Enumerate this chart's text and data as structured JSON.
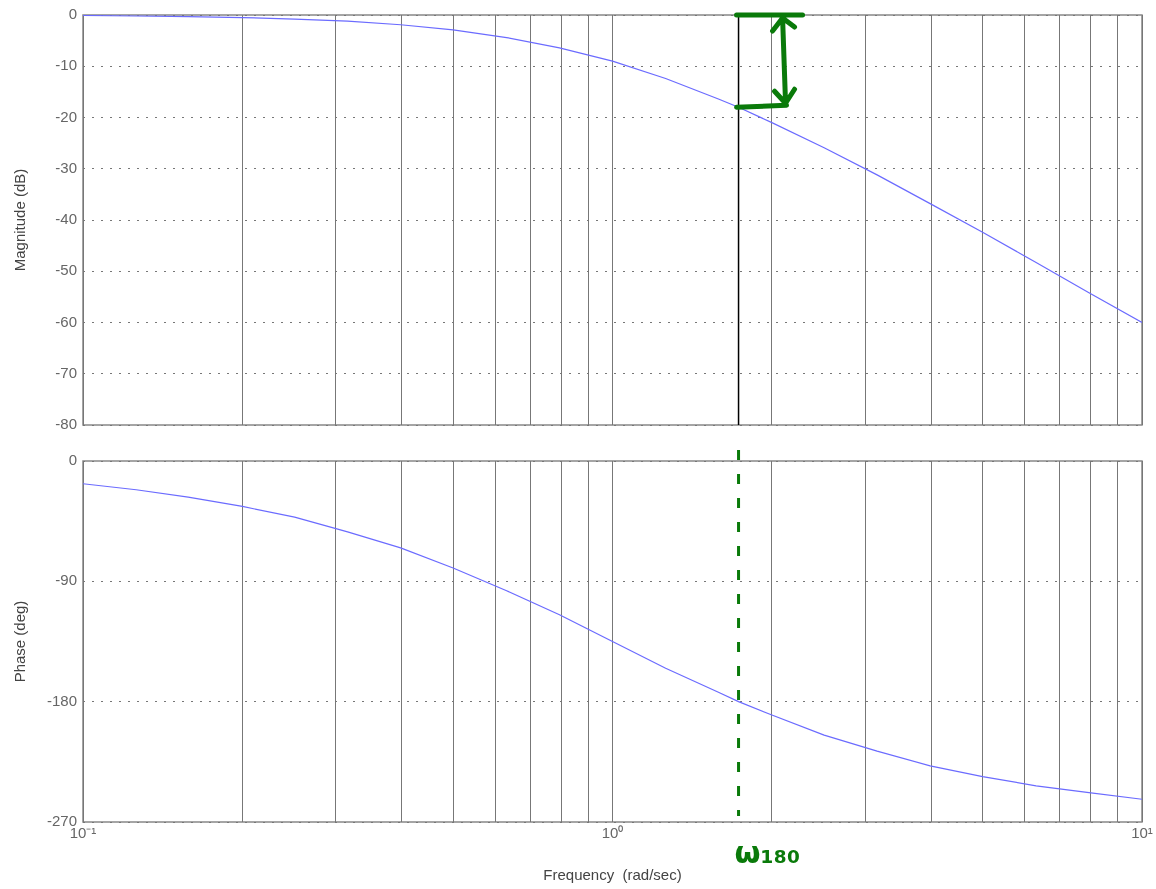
{
  "chart_data": [
    {
      "type": "line",
      "ylabel": "Magnitude (dB)",
      "log": "x",
      "grid": true,
      "legend": false,
      "marker": "none",
      "tick_labels": "y",
      "xlim": [
        0.1,
        10
      ],
      "xticks": [
        {
          "value": 0.1,
          "label": null
        },
        {
          "value": 0.2,
          "label": null
        },
        {
          "value": 0.3,
          "label": null
        },
        {
          "value": 0.4,
          "label": null
        },
        {
          "value": 0.5,
          "label": null
        },
        {
          "value": 0.6,
          "label": null
        },
        {
          "value": 0.7,
          "label": null
        },
        {
          "value": 0.8,
          "label": null
        },
        {
          "value": 0.9,
          "label": null
        },
        {
          "value": 1,
          "label": null
        },
        {
          "value": 2,
          "label": null
        },
        {
          "value": 3,
          "label": null
        },
        {
          "value": 4,
          "label": null
        },
        {
          "value": 5,
          "label": null
        },
        {
          "value": 6,
          "label": null
        },
        {
          "value": 7,
          "label": null
        },
        {
          "value": 8,
          "label": null
        },
        {
          "value": 9,
          "label": null
        },
        {
          "value": 10,
          "label": null
        }
      ],
      "ylim": [
        -80,
        0
      ],
      "yticks": [
        0,
        -10,
        -20,
        -30,
        -40,
        -50,
        -60,
        -70,
        -80
      ],
      "x": [
        0.1,
        0.126,
        0.158,
        0.2,
        0.251,
        0.316,
        0.398,
        0.5,
        0.631,
        0.794,
        1,
        1.26,
        1.585,
        1.73,
        2,
        2.51,
        3.16,
        3.98,
        5,
        6.31,
        7.94,
        10
      ],
      "series": [
        {
          "color": "#6b6bff",
          "values": [
            -0.1,
            -0.2,
            -0.3,
            -0.5,
            -0.8,
            -1.2,
            -1.9,
            -2.9,
            -4.4,
            -6.4,
            -9,
            -12.4,
            -16.4,
            -18,
            -21,
            -25.9,
            -31.2,
            -36.8,
            -42.4,
            -48.3,
            -54.2,
            -60
          ]
        }
      ],
      "ref_lines": [
        {
          "axis": "x",
          "value": 1.73,
          "color": "#000000",
          "line_style": "solid"
        }
      ]
    },
    {
      "type": "line",
      "ylabel": "Phase (deg)",
      "xlabel": "Frequency  (rad/sec)",
      "log": "x",
      "grid": true,
      "legend": false,
      "marker": "none",
      "xlim": [
        0.1,
        10
      ],
      "xticks": [
        {
          "value": 0.1,
          "label": "10⁻¹"
        },
        {
          "value": 0.2,
          "label": null
        },
        {
          "value": 0.3,
          "label": null
        },
        {
          "value": 0.4,
          "label": null
        },
        {
          "value": 0.5,
          "label": null
        },
        {
          "value": 0.6,
          "label": null
        },
        {
          "value": 0.7,
          "label": null
        },
        {
          "value": 0.8,
          "label": null
        },
        {
          "value": 0.9,
          "label": null
        },
        {
          "value": 1,
          "label": "10⁰"
        },
        {
          "value": 2,
          "label": null
        },
        {
          "value": 3,
          "label": null
        },
        {
          "value": 4,
          "label": null
        },
        {
          "value": 5,
          "label": null
        },
        {
          "value": 6,
          "label": null
        },
        {
          "value": 7,
          "label": null
        },
        {
          "value": 8,
          "label": null
        },
        {
          "value": 9,
          "label": null
        },
        {
          "value": 10,
          "label": "10¹"
        }
      ],
      "ylim": [
        -270,
        0
      ],
      "yticks": [
        0,
        -90,
        -180,
        -270
      ],
      "x": [
        0.1,
        0.126,
        0.158,
        0.2,
        0.251,
        0.316,
        0.398,
        0.5,
        0.631,
        0.794,
        1,
        1.26,
        1.585,
        1.73,
        2,
        2.51,
        3.16,
        3.98,
        5,
        6.31,
        7.94,
        10
      ],
      "series": [
        {
          "color": "#6b6bff",
          "values": [
            -17,
            -21.5,
            -27,
            -34,
            -42,
            -53,
            -65,
            -80,
            -97,
            -115,
            -135,
            -155,
            -173,
            -180,
            -190,
            -205,
            -217,
            -228,
            -236,
            -243,
            -248,
            -253
          ]
        }
      ],
      "ref_lines": [
        {
          "axis": "x",
          "value": 1.73,
          "label": "ω₁₈₀",
          "color": "#0a7a0a",
          "line_style": "dashed"
        }
      ]
    }
  ]
}
